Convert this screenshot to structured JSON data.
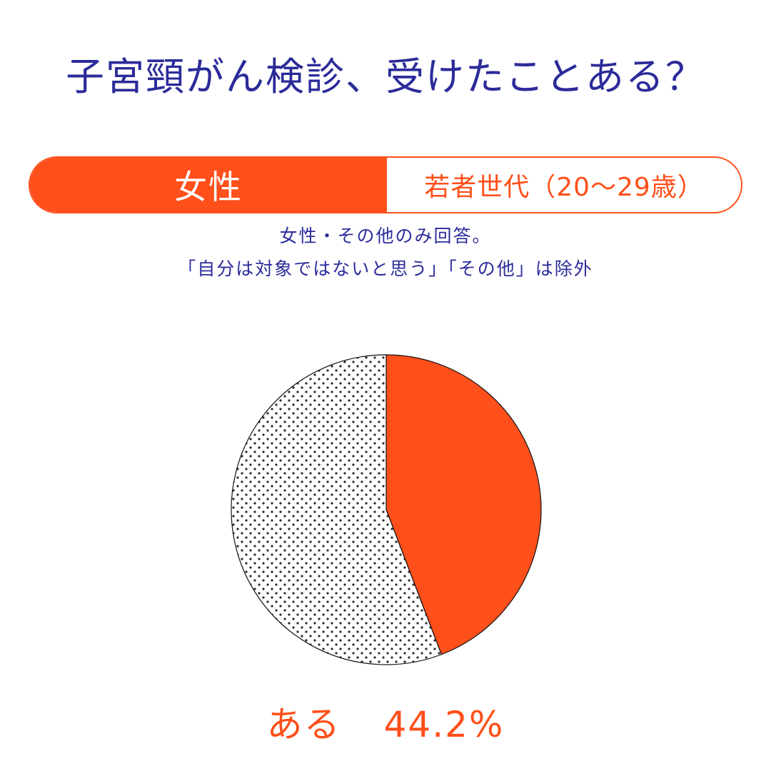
{
  "title": "子宮頸がん検診、受けたことある？",
  "tag": {
    "left": "女性",
    "right": "若者世代（20〜29歳）"
  },
  "notes": {
    "line1": "女性・その他のみ回答。",
    "line2": "「自分は対象ではないと思う」「その他」は除外"
  },
  "colors": {
    "title": "#2b2b9a",
    "accent": "#ff4f1a",
    "dots": "#2a2a2a"
  },
  "chart_data": {
    "type": "pie",
    "start": "top",
    "direction": "clockwise",
    "slices": [
      {
        "label": "ある",
        "value": 44.2,
        "fill": "solid",
        "color": "#ff4f1a"
      },
      {
        "value": 55.8,
        "fill": "dots",
        "color": "#ffffff"
      }
    ]
  },
  "result": {
    "label": "ある",
    "value": "44.2%"
  }
}
